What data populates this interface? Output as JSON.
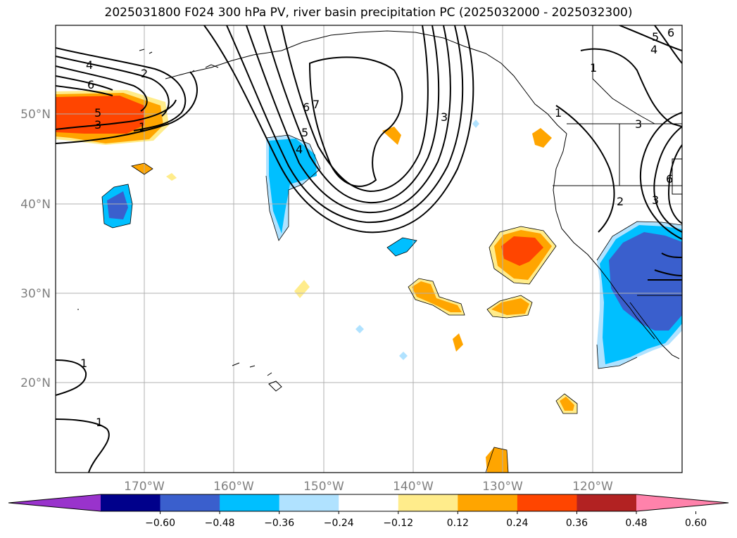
{
  "title": "2025031800 F024 300 hPa PV, river basin precipitation PC (2025032000 - 2025032300)",
  "lat_labels": [
    "50°N",
    "40°N",
    "30°N",
    "20°N"
  ],
  "lon_labels": [
    "170°W",
    "160°W",
    "150°W",
    "140°W",
    "130°W",
    "120°W"
  ],
  "colorbar": {
    "ticks": [
      "−0.60",
      "−0.48",
      "−0.36",
      "−0.24",
      "−0.12",
      "0.12",
      "0.24",
      "0.36",
      "0.48",
      "0.60"
    ],
    "colors": [
      "#9933cc",
      "#00008b",
      "#3a5fcd",
      "#00bfff",
      "#b0e2ff",
      "#ffffff",
      "#ffec8b",
      "#ffa500",
      "#ff4500",
      "#b22222",
      "#ff82ab"
    ]
  },
  "contour_labels": {
    "c1": "4",
    "c2": "6",
    "c3": "2",
    "c4": "5",
    "c5": "3",
    "c6": "1",
    "c7": "7",
    "c8": "6",
    "c9": "5",
    "c10": "4",
    "c11": "3",
    "c12": "1",
    "c13": "5",
    "c14": "6",
    "c15": "4",
    "c16": "1",
    "c17": "3",
    "c18": "2",
    "c19": "3",
    "c20": "6",
    "c21": "1",
    "c22": "1"
  }
}
